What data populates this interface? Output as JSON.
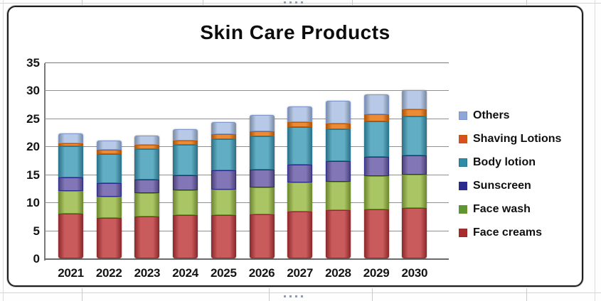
{
  "chart_data": {
    "type": "bar",
    "stacked": true,
    "title": "Skin Care Products",
    "categories": [
      "2021",
      "2022",
      "2023",
      "2024",
      "2025",
      "2026",
      "2027",
      "2028",
      "2029",
      "2030"
    ],
    "series": [
      {
        "name": "Face creams",
        "color": "#C03C3E",
        "edge": "#8F2B2E",
        "marker": "#A92B2B",
        "values": [
          8.0,
          7.2,
          7.5,
          7.7,
          7.8,
          7.9,
          8.4,
          8.6,
          8.7,
          9.0
        ]
      },
      {
        "name": "Face wash",
        "color": "#9ABA46",
        "edge": "#6E8F2F",
        "marker": "#5C9732",
        "values": [
          4.0,
          3.8,
          4.2,
          4.5,
          4.5,
          4.8,
          5.2,
          5.1,
          6.0,
          6.0
        ]
      },
      {
        "name": "Sunscreen",
        "color": "#6A5CA8",
        "edge": "#2B2B8E",
        "marker": "#2A2A8E",
        "values": [
          2.5,
          2.4,
          2.4,
          2.6,
          3.4,
          3.1,
          3.2,
          3.7,
          3.4,
          3.4
        ]
      },
      {
        "name": "Body lotion",
        "color": "#419DB9",
        "edge": "#27768E",
        "marker": "#2E8CA6",
        "values": [
          5.5,
          5.3,
          5.4,
          5.5,
          5.6,
          6.0,
          6.7,
          5.7,
          6.4,
          7.0
        ]
      },
      {
        "name": "Shaving Lotions",
        "color": "#E8750F",
        "edge": "#BC5A0B",
        "marker": "#D94F1E",
        "values": [
          0.6,
          0.7,
          0.8,
          0.8,
          0.9,
          0.9,
          0.9,
          1.0,
          1.2,
          1.2
        ]
      },
      {
        "name": "Others",
        "color": "#A9BFE2",
        "edge": "#7F97C8",
        "marker": "#8FA6D9",
        "values": [
          1.7,
          1.6,
          1.6,
          2.0,
          2.2,
          2.9,
          2.8,
          4.0,
          3.6,
          3.4
        ]
      }
    ],
    "legend_order": [
      "Others",
      "Shaving Lotions",
      "Body lotion",
      "Sunscreen",
      "Face wash",
      "Face creams"
    ],
    "legend_position": "right",
    "xlabel": "",
    "ylabel": "",
    "ylim": [
      0,
      35
    ],
    "yticks": [
      0,
      5,
      10,
      15,
      20,
      25,
      30,
      35
    ],
    "grid": true
  }
}
